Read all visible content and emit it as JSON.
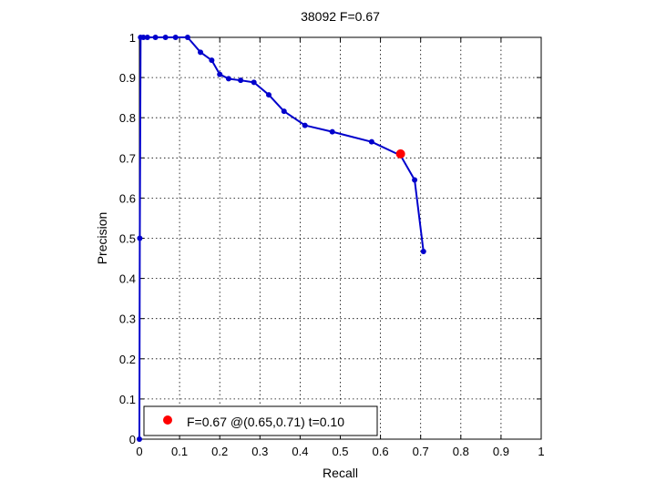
{
  "chart_data": {
    "type": "line",
    "title": "38092 F=0.67",
    "xlabel": "Recall",
    "ylabel": "Precision",
    "xlim": [
      0,
      1
    ],
    "ylim": [
      0,
      1
    ],
    "grid": true,
    "x_ticks": [
      0,
      0.1,
      0.2,
      0.3,
      0.4,
      0.5,
      0.6,
      0.7,
      0.8,
      0.9,
      1
    ],
    "x_tick_labels": [
      "0",
      "0.1",
      "0.2",
      "0.3",
      "0.4",
      "0.5",
      "0.6",
      "0.7",
      "0.8",
      "0.9",
      "1"
    ],
    "y_ticks": [
      0,
      0.1,
      0.2,
      0.3,
      0.4,
      0.5,
      0.6,
      0.7,
      0.8,
      0.9,
      1
    ],
    "y_tick_labels": [
      "0",
      "0.1",
      "0.2",
      "0.3",
      "0.4",
      "0.5",
      "0.6",
      "0.7",
      "0.8",
      "0.9",
      "1"
    ],
    "series": [
      {
        "color": "#0000CC",
        "x": [
          0,
          0.001,
          0.003,
          0.01,
          0.02,
          0.04,
          0.065,
          0.09,
          0.12,
          0.152,
          0.18,
          0.2,
          0.222,
          0.252,
          0.285,
          0.322,
          0.36,
          0.412,
          0.48,
          0.578,
          0.65,
          0.685,
          0.707
        ],
        "y": [
          0,
          0.5,
          1,
          1,
          1,
          1,
          1,
          1,
          1,
          0.963,
          0.943,
          0.908,
          0.897,
          0.893,
          0.888,
          0.857,
          0.816,
          0.781,
          0.765,
          0.74,
          0.706,
          0.645,
          0.467
        ]
      }
    ],
    "highlight_point": {
      "x": 0.65,
      "y": 0.71,
      "color": "#FF0000"
    },
    "legend": {
      "position": "bottom-left",
      "entries": [
        "F=0.67 @(0.65,0.71) t=0.10"
      ]
    }
  }
}
